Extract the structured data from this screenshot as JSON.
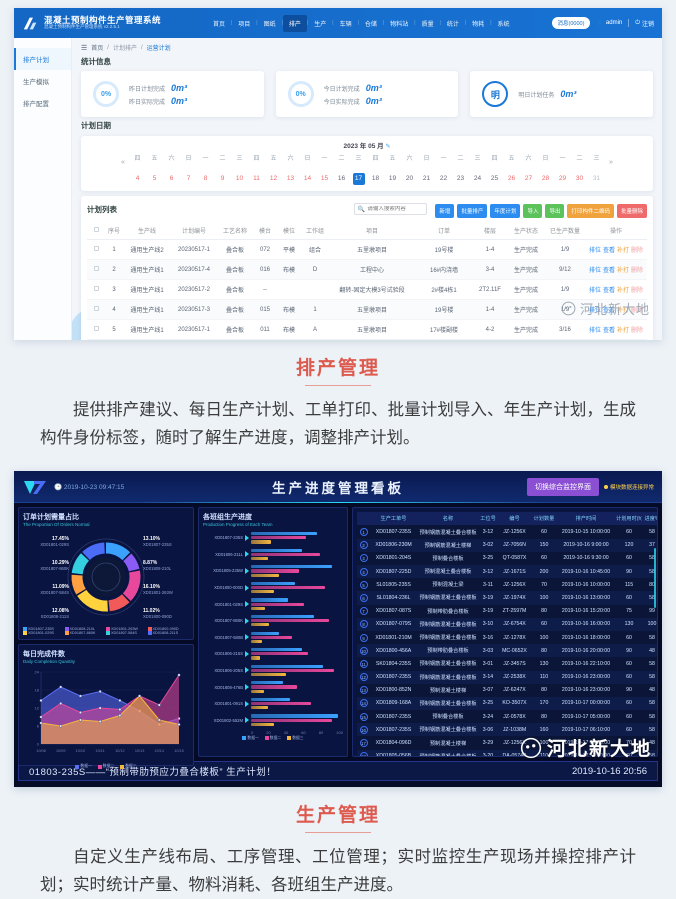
{
  "app": {
    "title": "混凝土预制构件生产管理系统",
    "subtitle": "混凝土预制构件生产管理系统 v2.2.5.1",
    "nav": [
      "首页",
      "项目",
      "图纸",
      "排产",
      "生产",
      "车辆",
      "仓储",
      "物料站",
      "质量",
      "统计",
      "物耗",
      "系统"
    ],
    "active_nav_index": 3,
    "header_right": {
      "notice": "消息(0000)",
      "user": "admin",
      "logout": "注销"
    },
    "sidebar": [
      {
        "label": "排产计划",
        "active": true
      },
      {
        "label": "生产模拟",
        "active": false
      },
      {
        "label": "排产配置",
        "active": false
      }
    ],
    "breadcrumb": [
      "首页",
      "计划排产",
      "运营计划"
    ],
    "stats_title": "统计信息",
    "cards": [
      {
        "ring": "0%",
        "rows": [
          {
            "label": "昨日计划完成",
            "value": "0m³"
          },
          {
            "label": "昨日实际完成",
            "value": "0m³"
          }
        ]
      },
      {
        "ring": "0%",
        "rows": [
          {
            "label": "今日计划完成",
            "value": "0m³"
          },
          {
            "label": "今日实际完成",
            "value": "0m³"
          }
        ]
      },
      {
        "ring": "明",
        "rows": [
          {
            "label": "明日计划任务",
            "value": "0m³"
          }
        ]
      }
    ],
    "calendar": {
      "section_title": "计划日期",
      "month": "2023 年 05 月",
      "prev": "«",
      "next": "»",
      "days": [
        {
          "d": 4,
          "w": "四",
          "s": "red"
        },
        {
          "d": 5,
          "w": "五",
          "s": "red"
        },
        {
          "d": 6,
          "w": "六",
          "s": "red"
        },
        {
          "d": 7,
          "w": "日",
          "s": "red"
        },
        {
          "d": 8,
          "w": "一",
          "s": "red"
        },
        {
          "d": 9,
          "w": "二",
          "s": "red"
        },
        {
          "d": 10,
          "w": "三",
          "s": "red"
        },
        {
          "d": 11,
          "w": "四",
          "s": "red"
        },
        {
          "d": 12,
          "w": "五",
          "s": "red"
        },
        {
          "d": 13,
          "w": "六",
          "s": "red"
        },
        {
          "d": 14,
          "w": "日",
          "s": "red"
        },
        {
          "d": 15,
          "w": "一",
          "s": "red"
        },
        {
          "d": 16,
          "w": "二",
          "s": "plain"
        },
        {
          "d": 17,
          "w": "三",
          "s": "selected"
        },
        {
          "d": 18,
          "w": "四",
          "s": "plain"
        },
        {
          "d": 19,
          "w": "五",
          "s": "plain"
        },
        {
          "d": 20,
          "w": "六",
          "s": "plain"
        },
        {
          "d": 21,
          "w": "日",
          "s": "plain"
        },
        {
          "d": 22,
          "w": "一",
          "s": "plain"
        },
        {
          "d": 23,
          "w": "二",
          "s": "plain"
        },
        {
          "d": 24,
          "w": "三",
          "s": "plain"
        },
        {
          "d": 25,
          "w": "四",
          "s": "plain"
        },
        {
          "d": 26,
          "w": "五",
          "s": "red"
        },
        {
          "d": 27,
          "w": "六",
          "s": "red"
        },
        {
          "d": 28,
          "w": "日",
          "s": "red"
        },
        {
          "d": 29,
          "w": "一",
          "s": "red"
        },
        {
          "d": 30,
          "w": "二",
          "s": "red"
        },
        {
          "d": 31,
          "w": "三",
          "s": "dim"
        }
      ]
    },
    "plan": {
      "section_title": "计划列表",
      "search_placeholder": "请输入搜索内容",
      "buttons": [
        {
          "label": "新增",
          "color": "blue"
        },
        {
          "label": "批量排产",
          "color": "blue"
        },
        {
          "label": "年度计划",
          "color": "blue"
        },
        {
          "label": "导入",
          "color": "green"
        },
        {
          "label": "导出",
          "color": "green"
        },
        {
          "label": "打印构件二维码",
          "color": "orange"
        },
        {
          "label": "批量删除",
          "color": "red"
        }
      ],
      "columns": [
        "序号",
        "生产线",
        "计划编号",
        "工艺名称",
        "模台",
        "模位",
        "工作组",
        "项目",
        "订单",
        "楼层",
        "生产状态",
        "已生产数量",
        "操作"
      ],
      "ops": [
        "排位",
        "查看",
        "补打",
        "删除"
      ],
      "rows": [
        [
          "1",
          "通用生产线2",
          "20230517-1",
          "叠合板",
          "072",
          "平模",
          "组合",
          "五里墩项目",
          "19号楼",
          "1-4",
          "生产完成",
          "1/9"
        ],
        [
          "2",
          "通用生产线1",
          "20230517-4",
          "叠合板",
          "016",
          "布模",
          "D",
          "工程中心",
          "16#内浇墙",
          "3-4",
          "生产完成",
          "9/12"
        ],
        [
          "3",
          "通用生产线1",
          "20230517-2",
          "叠合板",
          "--",
          "",
          "",
          "翻转-固定大模3号试验段",
          "2#楼4栋1",
          "2T2.11F",
          "生产完成",
          "1/9"
        ],
        [
          "4",
          "通用生产线1",
          "20230517-3",
          "叠合板",
          "015",
          "布模",
          "1",
          "五里墩项目",
          "19号楼",
          "1-4",
          "生产完成",
          "1/9"
        ],
        [
          "5",
          "通用生产线1",
          "20230517-1",
          "叠合板",
          "011",
          "布模",
          "A",
          "五里墩项目",
          "17#楼副楼",
          "4-2",
          "生产完成",
          "3/16"
        ]
      ],
      "pagination": {
        "total": "共 5 条",
        "per_page": "10条/页",
        "prev": "‹",
        "page": "1",
        "next": "›",
        "goto_label": "前往",
        "goto_page": "1",
        "unit": "页"
      }
    }
  },
  "caption1": {
    "title": "排产管理",
    "body": "提供排产建议、每日生产计划、工单打印、批量计划导入、年生产计划，生成构件身份标签，随时了解生产进度，调整排产计划。"
  },
  "dashboard": {
    "time": "2019-10-23 09:47:15",
    "title": "生产进度管理看板",
    "switch_button": "切换综合监控界面",
    "status_text": "模块数据连接异常",
    "table": {
      "columns": [
        "",
        "生产工单号",
        "名称",
        "工位号",
        "编号",
        "计划数量",
        "排产时间",
        "计划用时(h)",
        "进度%",
        "完成状态"
      ],
      "rows": [
        [
          "XD01807-235S",
          "预制钢筋混凝土叠合楼板",
          "3-12",
          "JZ-1256X",
          "60",
          "2019-10-15 10:00:00",
          "60",
          "58",
          "进行中"
        ],
        [
          "XD01806-230M",
          "预制钢筋混凝土楼梯",
          "3-02",
          "JZ-7056N",
          "150",
          "2019-10-16 9:00:00",
          "120",
          "37",
          "进行中"
        ],
        [
          "XD01801-204S",
          "预制叠合楼板",
          "3-25",
          "QT-0587X",
          "60",
          "2019-10-16 9:30:00",
          "60",
          "58",
          "进行中"
        ],
        [
          "XD01807-225D",
          "预制混凝土叠合楼板",
          "3-12",
          "JZ-1671S",
          "200",
          "2019-10-16 10:45:00",
          "90",
          "58",
          "进行中"
        ],
        [
          "SL01805-235S",
          "预制混凝土梁",
          "3-11",
          "JZ-1256X",
          "70",
          "2019-10-16 10:00:00",
          "115",
          "80",
          "进行中"
        ],
        [
          "SL01804-236L",
          "预制钢筋混凝土叠合楼板",
          "3-19",
          "JZ-1974X",
          "100",
          "2019-10-16 13:00:00",
          "60",
          "58",
          "进行中"
        ],
        [
          "XD01807-087S",
          "预制带肋叠合楼板",
          "3-19",
          "ZT-2597M",
          "80",
          "2019-10-16 15:20:00",
          "75",
          "99",
          "进行中"
        ],
        [
          "XD01807-079S",
          "预制钢筋混凝土叠合楼板",
          "3-10",
          "JZ-6754X",
          "60",
          "2019-10-16 16:00:00",
          "130",
          "100",
          "进行中"
        ],
        [
          "XD01801-210M",
          "预制钢筋混凝土叠合楼板",
          "3-16",
          "JZ-1278X",
          "100",
          "2019-10-16 18:00:00",
          "60",
          "58",
          "进行中"
        ],
        [
          "XD01800-456A",
          "预制带肋叠合楼板",
          "3-03",
          "MC-0652X",
          "80",
          "2019-10-16 20:00:00",
          "90",
          "48",
          "进行中"
        ],
        [
          "SK01804-235S",
          "预制钢筋混凝土叠合楼板",
          "3-01",
          "JZ-3457S",
          "130",
          "2019-10-16 22:10:00",
          "60",
          "58",
          "进行中"
        ],
        [
          "XD01807-235S",
          "预制钢筋混凝土叠合楼板",
          "3-14",
          "JZ-2538X",
          "110",
          "2019-10-16 23:00:00",
          "60",
          "58",
          "进行中"
        ],
        [
          "XD01800-852N",
          "预制混凝土楼梯",
          "3-07",
          "JZ-6247X",
          "80",
          "2019-10-16 23:00:00",
          "90",
          "48",
          "进行中"
        ],
        [
          "XD01809-168A",
          "预制钢筋混凝土叠合楼板",
          "3-25",
          "KO-3507X",
          "170",
          "2019-10-17 00:00:00",
          "60",
          "58",
          "进行中"
        ],
        [
          "XD01807-235S",
          "预制叠合楼板",
          "3-24",
          "JZ-0578X",
          "80",
          "2019-10-17 05:00:00",
          "60",
          "58",
          "进行中"
        ],
        [
          "XD01807-235S",
          "预制钢筋混凝土叠合楼板",
          "3-06",
          "JZ-1038M",
          "160",
          "2019-10-17 06:10:00",
          "60",
          "58",
          "进行中"
        ],
        [
          "XD01804-096D",
          "预制混凝土楼梯",
          "3-29",
          "JZ-1256X",
          "100",
          "2019-10-17 10:00:00",
          "70",
          "48",
          "进行中"
        ],
        [
          "XD01805-056B",
          "预制钢筋混凝土叠合楼板",
          "3-20",
          "DA-0574B",
          "110",
          "2019-10-17 12:00:00",
          "60",
          "58",
          "进行中"
        ]
      ]
    },
    "marquee": "01803-235S——“预制带肋预应力叠合楼板” 生产计划！",
    "marquee_time": "2019-10-16 20:56"
  },
  "caption2": {
    "title": "生产管理",
    "body": "自定义生产线布局、工序管理、工位管理；实时监控生产现场并操控排产计划；实时统计产量、物料消耗、各班组生产进度。"
  },
  "watermark": "河北新大地",
  "colors": {
    "accent_blue": "#1a78d6",
    "button_blue": "#2d8cf0",
    "button_green": "#5cc25c",
    "button_orange": "#f0a23c",
    "button_red": "#ef6a6a",
    "purple": "#8a4fd3",
    "red_heading": "#dd5a4f",
    "cyan": "#2bd8f0",
    "warn_yellow": "#ffd24d"
  },
  "chart_data": [
    {
      "type": "pie",
      "title": "订单计划需量占比",
      "subtitle": "The Proportion Of Orders Normal",
      "labels": [
        "XD01807-235S",
        "XD01808-210L",
        "XD01801-263W",
        "XD01800-090D",
        "XD01801-029S",
        "XD01807-860K",
        "XD01807-584S",
        "XD01808-211S"
      ],
      "values": [
        13.1,
        8.87,
        16.1,
        11.02,
        17.45,
        10.29,
        11.09,
        12.08
      ],
      "colors": [
        "#3ba1ff",
        "#8a5cf5",
        "#e8489b",
        "#f25a5a",
        "#ffd23e",
        "#ff9f40",
        "#35d0e0",
        "#4a6cf7"
      ],
      "legend_position": "bottom"
    },
    {
      "type": "bar",
      "title": "各班组生产进度",
      "subtitle": "Production Progress of Each Team",
      "orientation": "horizontal",
      "categories": [
        "XD01807-235S",
        "XD01806-211L",
        "XD01805-235W",
        "XD01800-000D",
        "XD01801-029S",
        "XD01807-860K",
        "XD01807-580B",
        "XD01806-215S",
        "XD01806-205S",
        "XD01808-476B",
        "XD01801-091S",
        "XD01802-552M"
      ],
      "series": [
        {
          "name": "数据一",
          "color": "#3ba1ff",
          "values": [
            72,
            55,
            88,
            48,
            40,
            68,
            30,
            55,
            78,
            35,
            42,
            95
          ]
        },
        {
          "name": "数据二",
          "color": "#e8489b",
          "values": [
            60,
            75,
            52,
            80,
            58,
            85,
            45,
            62,
            90,
            50,
            65,
            88
          ]
        },
        {
          "name": "数据三",
          "color": "#f5b63e",
          "values": [
            22,
            18,
            30,
            25,
            15,
            20,
            12,
            10,
            38,
            14,
            18,
            25
          ]
        }
      ],
      "xlim": [
        0,
        100
      ],
      "xticks": [
        0,
        20,
        40,
        60,
        80,
        100
      ]
    },
    {
      "type": "area",
      "title": "每日完成件数",
      "subtitle": "Daily Completion Quantity",
      "x": [
        "10/08",
        "10/09",
        "10/10",
        "10/11",
        "10/12",
        "10/13",
        "10/14",
        "10/15"
      ],
      "series": [
        {
          "name": "数据一",
          "color": "#5b6ef5",
          "values": [
            14.5,
            19,
            16,
            17.5,
            14.5,
            11,
            6.5,
            8.5
          ]
        },
        {
          "name": "数据二",
          "color": "#e8489b",
          "values": [
            9,
            13.5,
            10.5,
            12,
            11.5,
            16,
            13,
            23
          ]
        },
        {
          "name": "数据三",
          "color": "#f5b63e",
          "values": [
            7,
            6,
            8,
            7.5,
            9.5,
            16,
            8,
            6.5
          ]
        }
      ],
      "ylim": [
        0,
        24
      ],
      "yticks": [
        0,
        6,
        12,
        18,
        24
      ]
    }
  ]
}
